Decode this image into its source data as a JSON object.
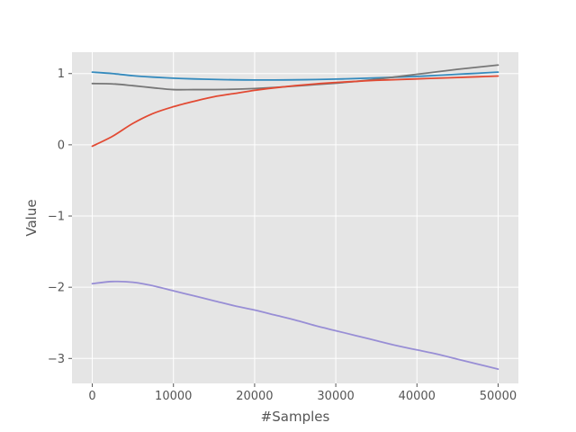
{
  "chart_data": {
    "type": "line",
    "title": "",
    "xlabel": "#Samples",
    "ylabel": "Value",
    "xlim": [
      -2500,
      52500
    ],
    "ylim": [
      -3.35,
      1.3
    ],
    "grid": true,
    "background": "#e5e5e5",
    "grid_color": "#ffffff",
    "x_ticks": [
      0,
      10000,
      20000,
      30000,
      40000,
      50000
    ],
    "x_tick_labels": [
      "0",
      "10000",
      "20000",
      "30000",
      "40000",
      "50000"
    ],
    "y_ticks": [
      -3,
      -2,
      -1,
      0,
      1
    ],
    "y_tick_labels": [
      "−3",
      "−2",
      "−1",
      "0",
      "1"
    ],
    "x": [
      0,
      2500,
      5000,
      7500,
      10000,
      12500,
      15000,
      17500,
      20000,
      22500,
      25000,
      27500,
      30000,
      32500,
      35000,
      37500,
      40000,
      42500,
      45000,
      47500,
      50000
    ],
    "series": [
      {
        "color": "#348abd",
        "values": [
          1.02,
          1.0,
          0.97,
          0.95,
          0.935,
          0.925,
          0.918,
          0.912,
          0.91,
          0.91,
          0.912,
          0.916,
          0.922,
          0.93,
          0.94,
          0.95,
          0.96,
          0.975,
          0.99,
          1.005,
          1.02
        ]
      },
      {
        "color": "#777777",
        "values": [
          0.86,
          0.855,
          0.83,
          0.8,
          0.775,
          0.775,
          0.775,
          0.78,
          0.79,
          0.805,
          0.825,
          0.845,
          0.865,
          0.89,
          0.92,
          0.955,
          0.99,
          1.025,
          1.06,
          1.09,
          1.12
        ]
      },
      {
        "color": "#e24a33",
        "values": [
          -0.02,
          0.12,
          0.3,
          0.44,
          0.535,
          0.61,
          0.675,
          0.72,
          0.765,
          0.8,
          0.83,
          0.855,
          0.875,
          0.89,
          0.905,
          0.915,
          0.925,
          0.935,
          0.945,
          0.955,
          0.965
        ]
      },
      {
        "color": "#988ed5",
        "values": [
          -1.95,
          -1.92,
          -1.93,
          -1.98,
          -2.05,
          -2.12,
          -2.19,
          -2.26,
          -2.32,
          -2.39,
          -2.46,
          -2.54,
          -2.61,
          -2.68,
          -2.75,
          -2.82,
          -2.88,
          -2.94,
          -3.01,
          -3.08,
          -3.15
        ]
      }
    ]
  }
}
